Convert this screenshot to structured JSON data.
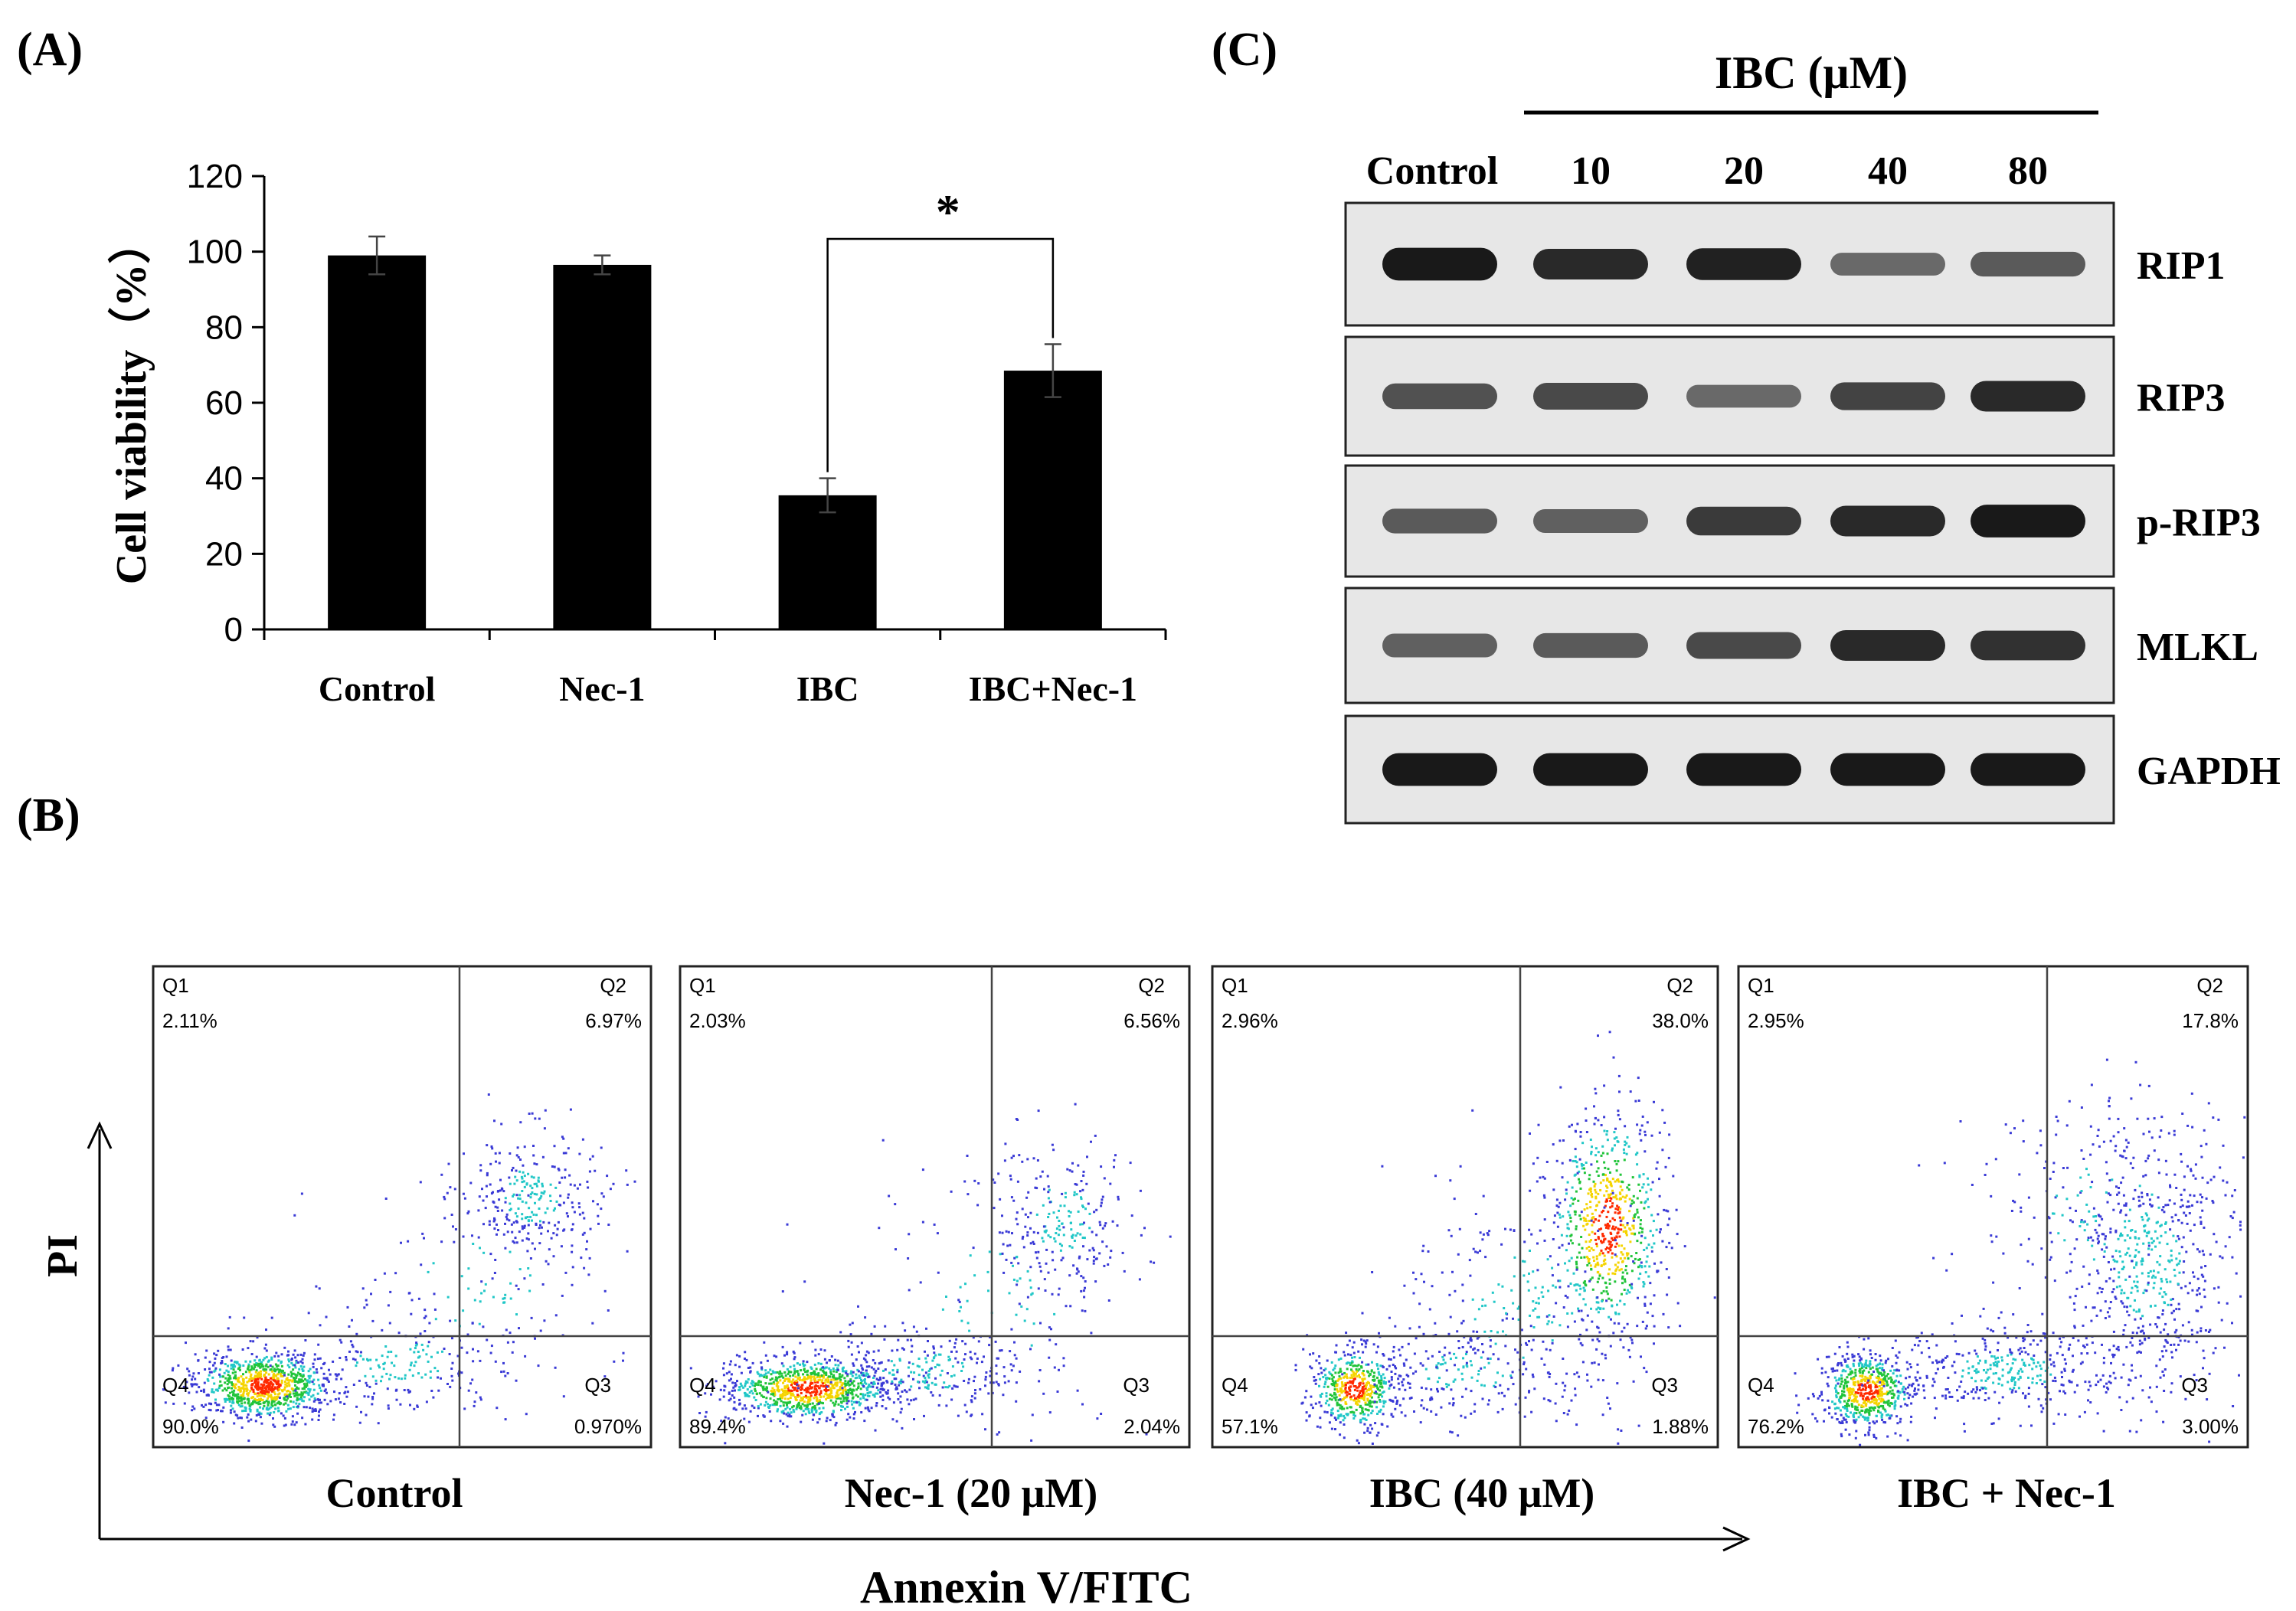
{
  "panels": {
    "a": "(A)",
    "b": "(B)",
    "c": "(C)"
  },
  "chart_data": [
    {
      "type": "bar",
      "panel": "(A)",
      "ylabel": "Cell viability（%）",
      "categories": [
        "Control",
        "Nec-1",
        "IBC",
        "IBC+Nec-1"
      ],
      "values": [
        99,
        96.5,
        35.5,
        68.5
      ],
      "errors": [
        5,
        2.5,
        4.5,
        7
      ],
      "ylim": [
        0,
        120
      ],
      "yticks": [
        0,
        20,
        40,
        60,
        80,
        100,
        120
      ],
      "grid": false,
      "significance": {
        "from": "IBC",
        "to": "IBC+Nec-1",
        "label": "*"
      }
    },
    {
      "type": "scatter",
      "panel": "(B)",
      "xlabel": "Annexin V/FITC",
      "ylabel": "PI",
      "plots": [
        {
          "label": "Control",
          "Q1": "2.11%",
          "Q2": "6.97%",
          "Q3": "0.970%",
          "Q4": "90.0%"
        },
        {
          "label": "Nec-1  (20 μM)",
          "Q1": "2.03%",
          "Q2": "6.56%",
          "Q3": "2.04%",
          "Q4": "89.4%"
        },
        {
          "label": "IBC (40 μM)",
          "Q1": "2.96%",
          "Q2": "38.0%",
          "Q3": "1.88%",
          "Q4": "57.1%"
        },
        {
          "label": "IBC + Nec-1",
          "Q1": "2.95%",
          "Q2": "17.8%",
          "Q3": "3.00%",
          "Q4": "76.2%"
        }
      ],
      "quadrant_names": [
        "Q1",
        "Q2",
        "Q3",
        "Q4"
      ]
    }
  ],
  "blot": {
    "panel": "(C)",
    "treatment": "IBC (μM)",
    "lanes": [
      "Control",
      "10",
      "20",
      "40",
      "80"
    ],
    "rows": [
      {
        "protein": "RIP1",
        "intensity": [
          0.95,
          0.85,
          0.9,
          0.45,
          0.55
        ]
      },
      {
        "protein": "RIP3",
        "intensity": [
          0.6,
          0.65,
          0.45,
          0.7,
          0.85
        ]
      },
      {
        "protein": "p-RIP3",
        "intensity": [
          0.55,
          0.5,
          0.75,
          0.85,
          0.95
        ]
      },
      {
        "protein": "MLKL",
        "intensity": [
          0.5,
          0.55,
          0.65,
          0.85,
          0.8
        ]
      },
      {
        "protein": "GAPDH",
        "intensity": [
          0.95,
          0.95,
          0.95,
          0.95,
          0.95
        ]
      }
    ]
  },
  "colors": {
    "bars": "#000000",
    "dots_low": "#3a3ad6",
    "dots_mid": "#21c7c7",
    "dots_high": "#ff2a00",
    "blot_bg": "#e7e7e7",
    "band": "#111111"
  }
}
